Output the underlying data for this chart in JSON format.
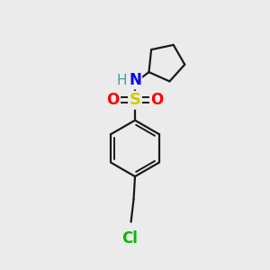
{
  "background_color": "#ebebeb",
  "bond_color": "#1a1a1a",
  "S_color": "#cccc00",
  "O_color": "#ff0000",
  "N_color": "#0000ff",
  "H_color": "#4a9a9a",
  "Cl_color": "#00bb00",
  "figsize": [
    3.0,
    3.0
  ],
  "dpi": 100,
  "xlim": [
    0,
    10
  ],
  "ylim": [
    0,
    10
  ]
}
